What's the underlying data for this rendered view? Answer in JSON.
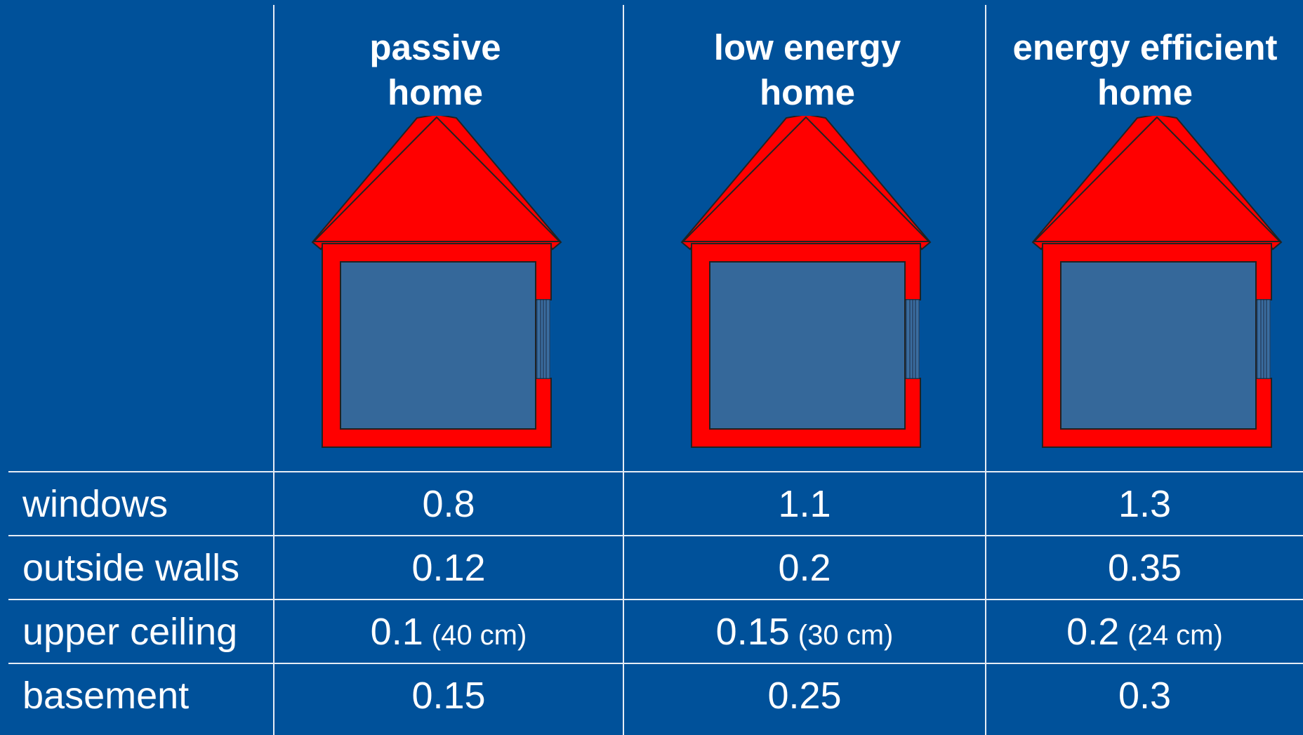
{
  "columns": [
    {
      "title_line1": "passive",
      "title_line2": "home"
    },
    {
      "title_line1": "low energy",
      "title_line2": "home"
    },
    {
      "title_line1": "energy efficient",
      "title_line2": "home"
    }
  ],
  "rows": [
    {
      "label": "windows",
      "values": [
        {
          "value": "0.8",
          "note": ""
        },
        {
          "value": "1.1",
          "note": ""
        },
        {
          "value": "1.3",
          "note": ""
        }
      ]
    },
    {
      "label": "outside walls",
      "values": [
        {
          "value": "0.12",
          "note": ""
        },
        {
          "value": "0.2",
          "note": ""
        },
        {
          "value": "0.35",
          "note": ""
        }
      ]
    },
    {
      "label": "upper ceiling",
      "values": [
        {
          "value": "0.1",
          "note": "(40 cm)"
        },
        {
          "value": "0.15",
          "note": "(30 cm)"
        },
        {
          "value": "0.2",
          "note": "(24 cm)"
        }
      ]
    },
    {
      "label": "basement",
      "values": [
        {
          "value": "0.15",
          "note": ""
        },
        {
          "value": "0.25",
          "note": ""
        },
        {
          "value": "0.3",
          "note": ""
        }
      ]
    }
  ],
  "colors": {
    "background": "#00519a",
    "roof_and_walls": "#ff0000",
    "interior": "#35689a",
    "grid_lines": "#e6ecf5",
    "text": "#ffffff"
  },
  "icons": [
    "house-icon"
  ]
}
